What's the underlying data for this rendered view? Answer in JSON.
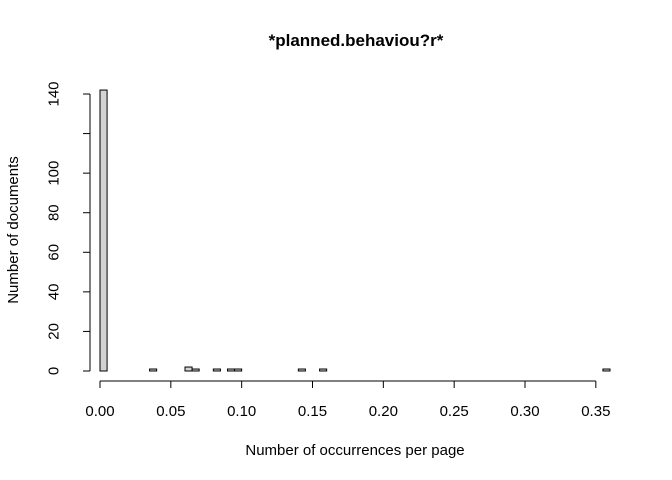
{
  "chart_data": {
    "type": "bar",
    "title": "*planned.behaviou?r*",
    "xlabel": "Number of occurrences per page",
    "ylabel": "Number of documents",
    "xlim": [
      0,
      0.36
    ],
    "ylim": [
      0,
      140
    ],
    "x_ticks": [
      0.0,
      0.05,
      0.1,
      0.15,
      0.2,
      0.25,
      0.3,
      0.35
    ],
    "x_tick_labels": [
      "0.00",
      "0.05",
      "0.10",
      "0.15",
      "0.20",
      "0.25",
      "0.30",
      "0.35"
    ],
    "y_ticks": [
      0,
      20,
      40,
      60,
      80,
      100,
      120,
      140
    ],
    "y_tick_labels": [
      "0",
      "20",
      "40",
      "60",
      "80",
      "100",
      "",
      "140"
    ],
    "bin_width": 0.005,
    "bin_start": 0.0,
    "values": [
      142,
      0,
      0,
      0,
      0,
      0,
      0,
      1,
      0,
      0,
      0,
      0,
      2,
      1,
      0,
      0,
      1,
      0,
      1,
      1,
      0,
      0,
      0,
      0,
      0,
      0,
      0,
      0,
      1,
      0,
      0,
      1,
      0,
      0,
      0,
      0,
      0,
      0,
      0,
      0,
      0,
      0,
      0,
      0,
      0,
      0,
      0,
      0,
      0,
      0,
      0,
      0,
      0,
      0,
      0,
      0,
      0,
      0,
      0,
      0,
      0,
      0,
      0,
      0,
      0,
      0,
      0,
      0,
      0,
      0,
      0,
      1
    ],
    "bar_color": "#d3d3d3",
    "border_color": "#000000"
  }
}
